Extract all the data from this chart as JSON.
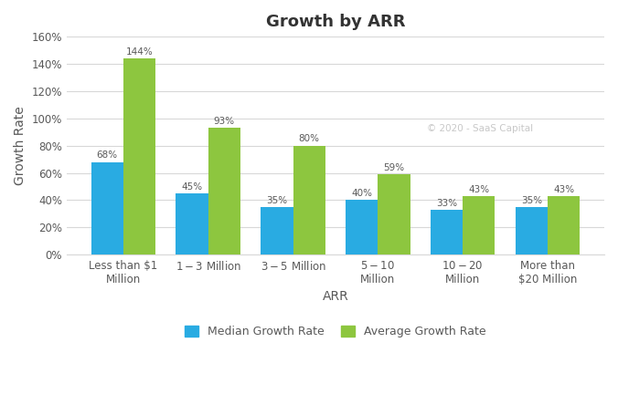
{
  "title": "Growth by ARR",
  "xlabel": "ARR",
  "ylabel": "Growth Rate",
  "categories": [
    "Less than $1\nMillion",
    "$1 - $3 Million",
    "$3 - $5 Million",
    "$5 - $10\nMillion",
    "$10 - $20\nMillion",
    "More than\n$20 Million"
  ],
  "median_values": [
    68,
    45,
    35,
    40,
    33,
    35
  ],
  "average_values": [
    144,
    93,
    80,
    59,
    43,
    43
  ],
  "median_color": "#29ABE2",
  "average_color": "#8DC63F",
  "ylim": [
    0,
    160
  ],
  "yticks": [
    0,
    20,
    40,
    60,
    80,
    100,
    120,
    140,
    160
  ],
  "ytick_labels": [
    "0%",
    "20%",
    "40%",
    "60%",
    "80%",
    "100%",
    "120%",
    "140%",
    "160%"
  ],
  "median_label": "Median Growth Rate",
  "average_label": "Average Growth Rate",
  "watermark": "© 2020 - SaaS Capital",
  "background_color": "#FFFFFF",
  "title_fontsize": 13,
  "axis_label_fontsize": 10,
  "tick_fontsize": 8.5,
  "bar_label_fontsize": 7.5,
  "legend_fontsize": 9,
  "grid_color": "#D8D8D8",
  "text_color": "#595959"
}
